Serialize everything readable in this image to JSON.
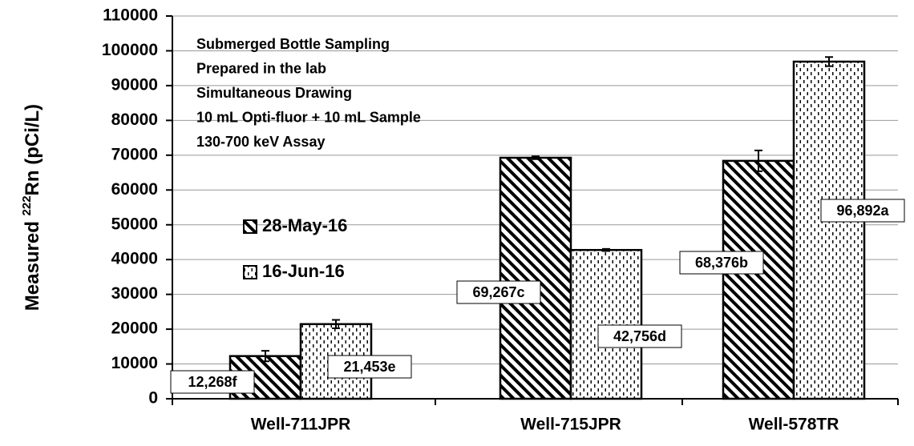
{
  "chart_data": {
    "type": "bar",
    "ylabel_parts": [
      "Measured ",
      "222",
      "Rn (pCi/L)"
    ],
    "annotations": [
      "Submerged Bottle Sampling",
      "Prepared in the lab",
      "Simultaneous Drawing",
      "10 mL Opti-fluor + 10 mL Sample",
      "130-700 keV Assay"
    ],
    "categories": [
      "Well-711JPR",
      "Well-715JPR",
      "Well-578TR"
    ],
    "series": [
      {
        "name": "28-May-16",
        "pattern": "hatch",
        "color": "#000000",
        "values": [
          12268,
          69267,
          68376
        ],
        "errors": [
          1500,
          400,
          3000
        ],
        "value_labels": [
          "12,268f",
          "69,267c",
          "68,376b"
        ]
      },
      {
        "name": "16-Jun-16",
        "pattern": "dots",
        "color": "#000000",
        "values": [
          21453,
          42756,
          96892
        ],
        "errors": [
          1200,
          300,
          1300
        ],
        "value_labels": [
          "21,453e",
          "42,756d",
          "96,892a"
        ]
      }
    ],
    "ylim": [
      0,
      110000
    ],
    "yticks": [
      0,
      10000,
      20000,
      30000,
      40000,
      50000,
      60000,
      70000,
      80000,
      90000,
      100000,
      110000
    ],
    "grid": true
  }
}
